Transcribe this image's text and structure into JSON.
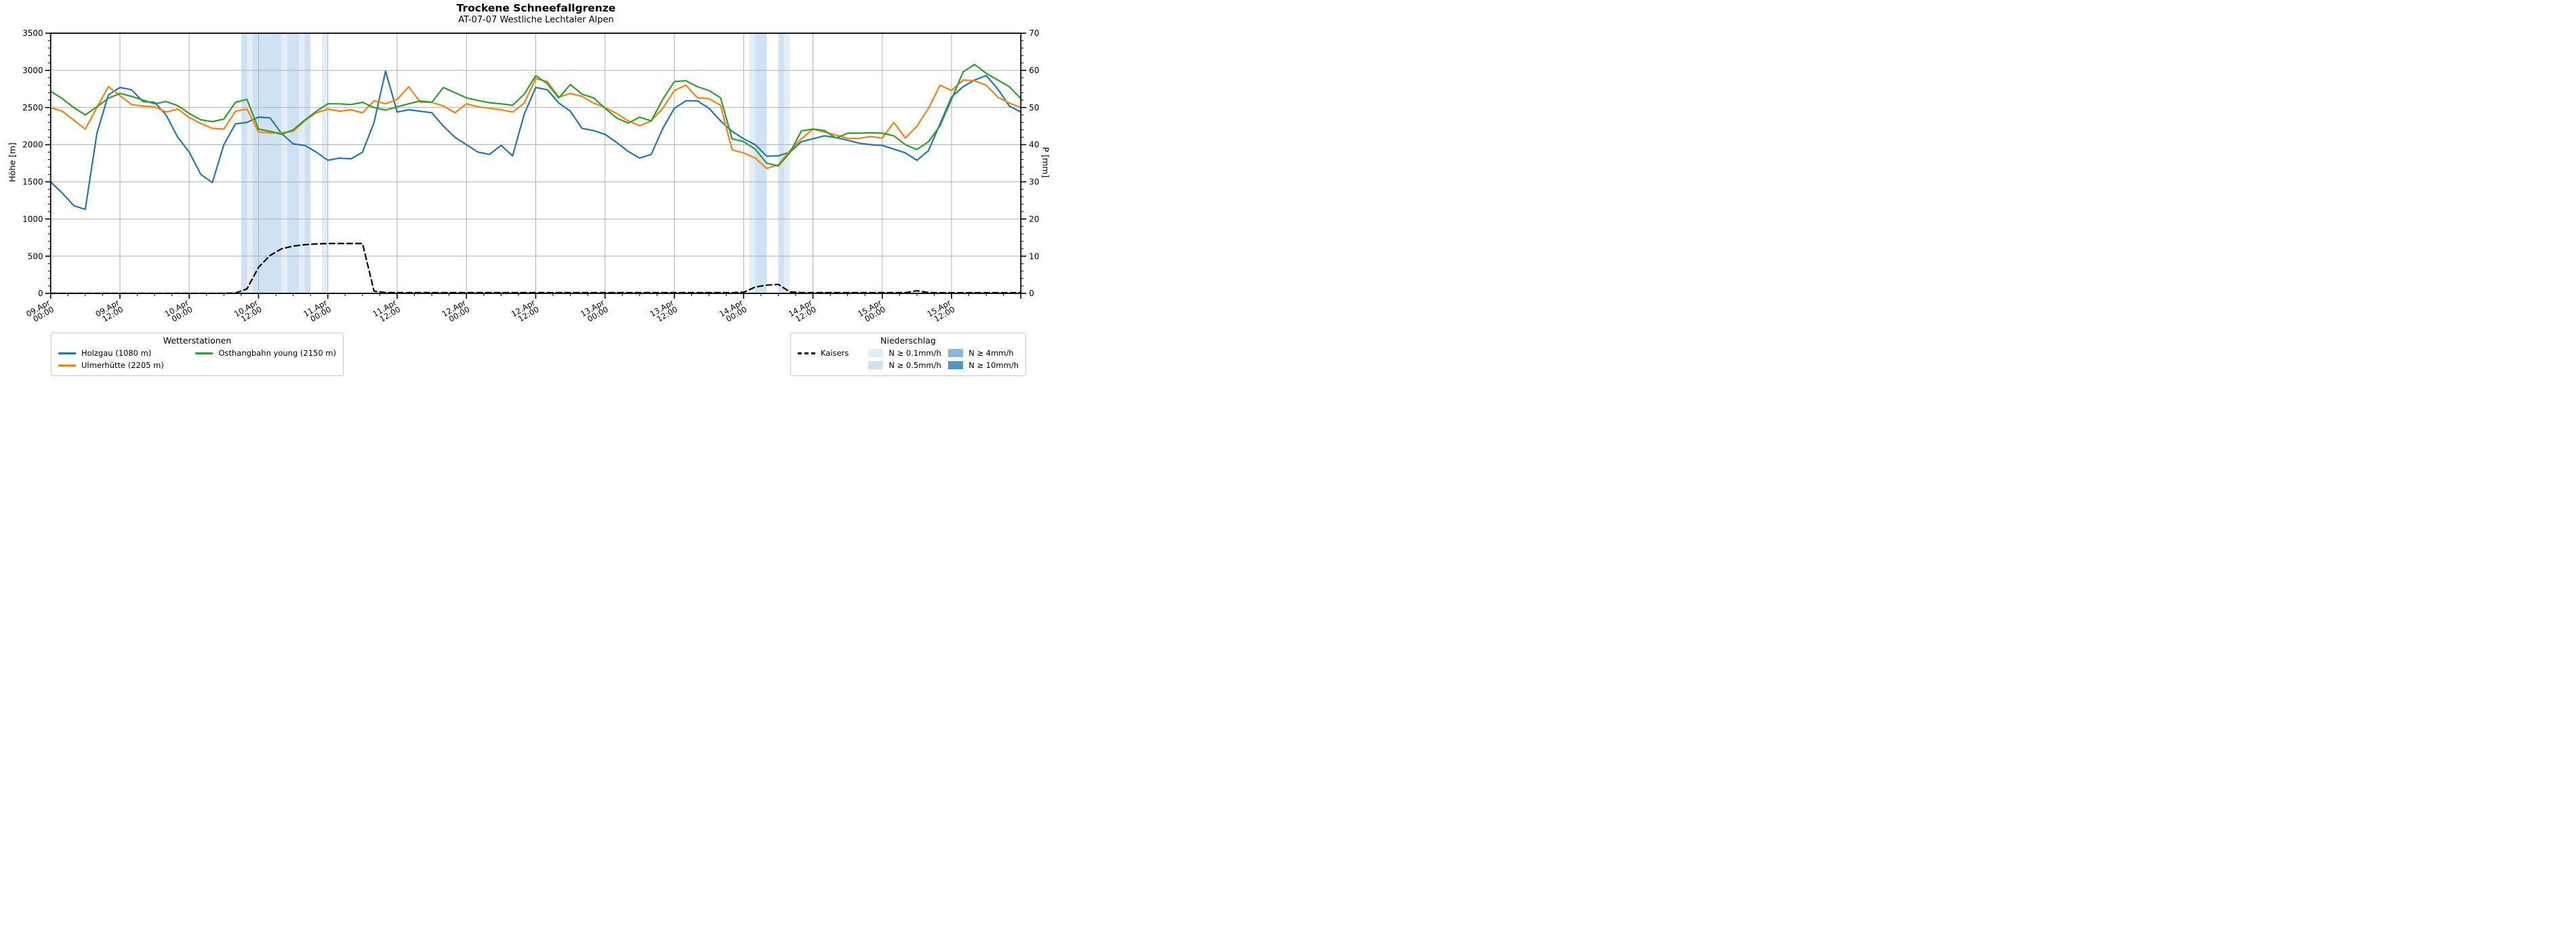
{
  "title": "Trockene Schneefallgrenze",
  "subtitle": "AT-07-07 Westliche Lechtaler Alpen",
  "legends": {
    "stations_title": "Wetterstationen",
    "precip_title": "Niederschlag"
  },
  "chart_data": {
    "type": "line",
    "title": "Trockene Schneefallgrenze",
    "subtitle": "AT-07-07 Westliche Lechtaler Alpen",
    "grid": true,
    "x_axis": {
      "unit": "hours since 09.Apr 00:00",
      "min_hour": 0,
      "max_hour": 168,
      "minor_tick_every_h": 3,
      "major_tick_every_h": 12
    },
    "y_left": {
      "label": "Höhe [m]",
      "min": 0,
      "max": 3500,
      "major_step": 500,
      "minor_step": 100
    },
    "y_right": {
      "label": "P [mm]",
      "min": 0,
      "max": 70,
      "major_step": 10,
      "minor_step": 2
    },
    "x_ticks": [
      {
        "hour": 0,
        "date": "09.Apr",
        "time": "00:00"
      },
      {
        "hour": 12,
        "date": "09.Apr",
        "time": "12:00"
      },
      {
        "hour": 24,
        "date": "10.Apr",
        "time": "00:00"
      },
      {
        "hour": 36,
        "date": "10.Apr",
        "time": "12:00"
      },
      {
        "hour": 48,
        "date": "11.Apr",
        "time": "00:00"
      },
      {
        "hour": 60,
        "date": "11.Apr",
        "time": "12:00"
      },
      {
        "hour": 72,
        "date": "12.Apr",
        "time": "00:00"
      },
      {
        "hour": 84,
        "date": "12.Apr",
        "time": "12:00"
      },
      {
        "hour": 96,
        "date": "13.Apr",
        "time": "00:00"
      },
      {
        "hour": 108,
        "date": "13.Apr",
        "time": "12:00"
      },
      {
        "hour": 120,
        "date": "14.Apr",
        "time": "00:00"
      },
      {
        "hour": 132,
        "date": "14.Apr",
        "time": "12:00"
      },
      {
        "hour": 144,
        "date": "15.Apr",
        "time": "00:00"
      },
      {
        "hour": 156,
        "date": "15.Apr",
        "time": "12:00"
      }
    ],
    "x_step_hours": 2,
    "series": [
      {
        "name": "Holzgau (1080 m)",
        "color": "#1f77b4",
        "style": "solid",
        "axis": "left",
        "values": [
          1500,
          1350,
          1180,
          1130,
          2150,
          2670,
          2770,
          2740,
          2580,
          2570,
          2400,
          2100,
          1900,
          1600,
          1490,
          2000,
          2280,
          2300,
          2370,
          2360,
          2150,
          2010,
          1990,
          1900,
          1790,
          1820,
          1810,
          1900,
          2300,
          2990,
          2440,
          2470,
          2450,
          2430,
          2250,
          2100,
          2000,
          1900,
          1870,
          1990,
          1850,
          2410,
          2770,
          2740,
          2560,
          2450,
          2220,
          2190,
          2140,
          2030,
          1910,
          1820,
          1870,
          2220,
          2490,
          2590,
          2590,
          2490,
          2320,
          2180,
          2080,
          2000,
          1845,
          1850,
          1900,
          2040,
          2080,
          2120,
          2095,
          2060,
          2020,
          2000,
          1990,
          1940,
          1890,
          1790,
          1920,
          2280,
          2640,
          2780,
          2870,
          2930,
          2750,
          2520,
          2440
        ]
      },
      {
        "name": "Ulmerhütte (2205 m)",
        "color": "#ff7f0e",
        "style": "solid",
        "axis": "left",
        "values": [
          2500,
          2450,
          2330,
          2210,
          2500,
          2780,
          2660,
          2540,
          2520,
          2510,
          2440,
          2480,
          2365,
          2285,
          2220,
          2210,
          2450,
          2480,
          2170,
          2160,
          2160,
          2180,
          2320,
          2430,
          2480,
          2450,
          2470,
          2430,
          2590,
          2550,
          2610,
          2780,
          2570,
          2570,
          2520,
          2430,
          2550,
          2510,
          2490,
          2470,
          2440,
          2560,
          2890,
          2850,
          2640,
          2690,
          2650,
          2560,
          2500,
          2420,
          2320,
          2255,
          2320,
          2490,
          2730,
          2800,
          2630,
          2620,
          2530,
          1930,
          1890,
          1820,
          1680,
          1730,
          1920,
          2080,
          2210,
          2170,
          2130,
          2085,
          2085,
          2110,
          2090,
          2300,
          2090,
          2250,
          2490,
          2800,
          2730,
          2870,
          2860,
          2800,
          2640,
          2560,
          2500
        ]
      },
      {
        "name": "Osthangbahn young (2150 m)",
        "color": "#2ca02c",
        "style": "solid",
        "axis": "left",
        "values": [
          2720,
          2620,
          2500,
          2400,
          2510,
          2625,
          2690,
          2650,
          2600,
          2550,
          2580,
          2525,
          2420,
          2335,
          2310,
          2345,
          2570,
          2610,
          2210,
          2180,
          2140,
          2200,
          2330,
          2450,
          2550,
          2550,
          2540,
          2570,
          2500,
          2465,
          2510,
          2550,
          2590,
          2570,
          2770,
          2700,
          2630,
          2595,
          2565,
          2550,
          2530,
          2680,
          2930,
          2820,
          2630,
          2810,
          2680,
          2630,
          2490,
          2360,
          2290,
          2370,
          2320,
          2610,
          2850,
          2860,
          2780,
          2730,
          2630,
          2080,
          2040,
          1940,
          1750,
          1715,
          1890,
          2185,
          2210,
          2190,
          2090,
          2155,
          2155,
          2160,
          2155,
          2120,
          2000,
          1935,
          2040,
          2255,
          2610,
          2980,
          3080,
          2960,
          2870,
          2780,
          2620
        ]
      },
      {
        "name": "Kaisers",
        "color": "#000000",
        "style": "dashed",
        "axis": "left",
        "values": [
          0,
          0,
          0,
          0,
          0,
          0,
          0,
          0,
          0,
          0,
          0,
          0,
          0,
          0,
          0,
          0,
          5,
          60,
          350,
          510,
          600,
          635,
          655,
          665,
          670,
          670,
          670,
          670,
          30,
          10,
          10,
          10,
          10,
          10,
          10,
          10,
          10,
          10,
          10,
          10,
          10,
          10,
          10,
          10,
          10,
          10,
          10,
          10,
          10,
          10,
          10,
          10,
          10,
          10,
          10,
          10,
          10,
          10,
          10,
          10,
          15,
          85,
          110,
          120,
          20,
          10,
          10,
          10,
          10,
          10,
          10,
          10,
          10,
          10,
          10,
          35,
          10,
          8,
          8,
          8,
          8,
          8,
          8,
          8,
          8
        ]
      }
    ],
    "precip_levels": [
      {
        "key": "p01",
        "label": "N ≥ 0.1mm/h",
        "color": "#e3edf8"
      },
      {
        "key": "p05",
        "label": "N ≥ 0.5mm/h",
        "color": "#cfe1f2"
      },
      {
        "key": "p4",
        "label": "N ≥ 4mm/h",
        "color": "#85b8da"
      },
      {
        "key": "p10",
        "label": "N ≥ 10mm/h",
        "color": "#4f97c7"
      }
    ],
    "precip_bands": [
      {
        "from_h": 33,
        "to_h": 34,
        "level": "p05"
      },
      {
        "from_h": 34,
        "to_h": 35,
        "level": "p01"
      },
      {
        "from_h": 35,
        "to_h": 40,
        "level": "p05"
      },
      {
        "from_h": 40,
        "to_h": 41,
        "level": "p01"
      },
      {
        "from_h": 41,
        "to_h": 43,
        "level": "p05"
      },
      {
        "from_h": 43,
        "to_h": 44,
        "level": "p01"
      },
      {
        "from_h": 44,
        "to_h": 45,
        "level": "p05"
      },
      {
        "from_h": 47,
        "to_h": 48,
        "level": "p01"
      },
      {
        "from_h": 121,
        "to_h": 122,
        "level": "p01"
      },
      {
        "from_h": 122,
        "to_h": 124,
        "level": "p05"
      },
      {
        "from_h": 126,
        "to_h": 127,
        "level": "p05"
      },
      {
        "from_h": 127,
        "to_h": 128,
        "level": "p01"
      }
    ]
  }
}
